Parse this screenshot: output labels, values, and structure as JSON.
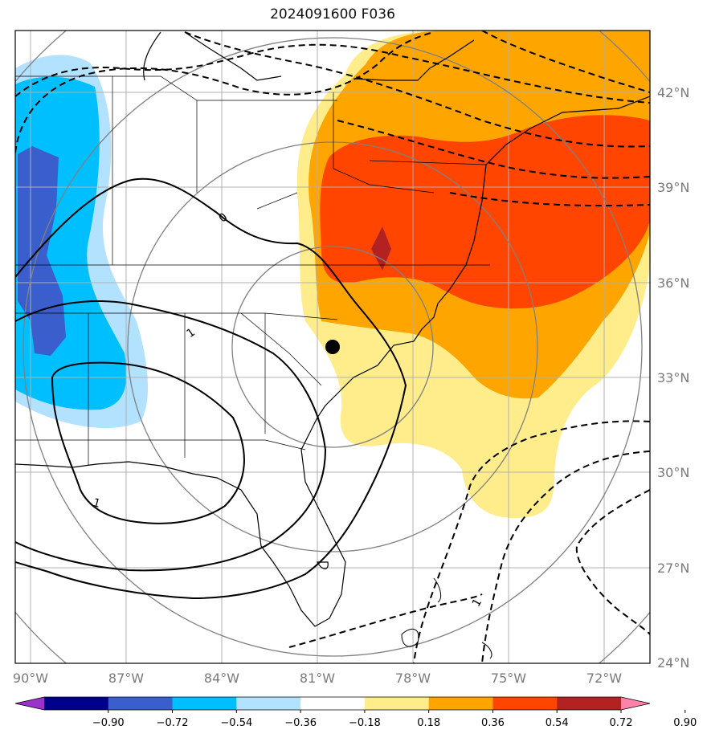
{
  "title": "2024091600 F036",
  "map": {
    "lon_ticks": [
      "90°W",
      "87°W",
      "84°W",
      "81°W",
      "78°W",
      "75°W",
      "72°W"
    ],
    "lat_ticks": [
      "42°N",
      "39°N",
      "36°N",
      "33°N",
      "30°N",
      "27°N",
      "24°N"
    ],
    "contour_labels": [
      "0",
      "1",
      "1",
      "1"
    ],
    "marker": "station-dot"
  },
  "colorbar": {
    "labels": [
      "−0.90",
      "−0.72",
      "−0.54",
      "−0.36",
      "−0.18",
      "0.18",
      "0.36",
      "0.54",
      "0.72",
      "0.90"
    ],
    "colors": [
      "#9933cc",
      "#00008b",
      "#3a5fcd",
      "#00bfff",
      "#b2e2ff",
      "#ffffff",
      "#ffec8b",
      "#ffa500",
      "#ff4500",
      "#b22222",
      "#ff82ab"
    ]
  },
  "colors": {
    "grid": "#b0b0b0",
    "range_rings": "#808080"
  }
}
